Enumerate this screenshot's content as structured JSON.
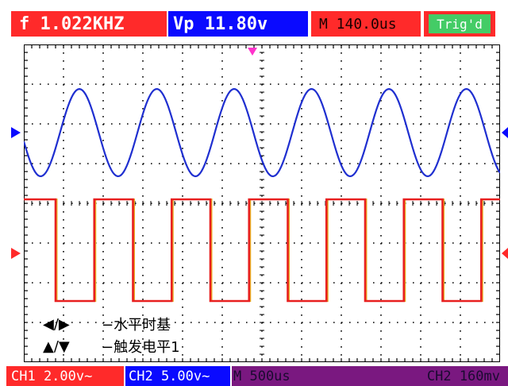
{
  "header": {
    "frequency": "f 1.022KHZ",
    "vpeak": "Vp 11.80v",
    "timebase_m": "M 140.0us",
    "trigger_status": "Trig'd"
  },
  "footer": {
    "ch1_scale": "CH1 2.00v~",
    "ch2_scale": "CH2 5.00v~",
    "m_time": "M 500us",
    "trigger_level": "CH2 160mv"
  },
  "help": {
    "line1_icons": "◀/▶",
    "line1_text": "−水平时基",
    "line2_icons": "▲/▼",
    "line2_text": "−触发电平1"
  },
  "colors": {
    "red": "#ff2a2a",
    "blue": "#0a0aff",
    "green": "#44cc66",
    "purple": "#7a1880",
    "ch1_trace": "#1f2fd0",
    "ch2_trace": "#e82020",
    "ch2_trace_edge": "#e8b020"
  },
  "waveforms": {
    "ch1": {
      "type": "sine",
      "cycles_visible": 6.1,
      "label": "CH1"
    },
    "ch2": {
      "type": "square",
      "cycles_visible": 6.1,
      "label": "CH2"
    }
  }
}
